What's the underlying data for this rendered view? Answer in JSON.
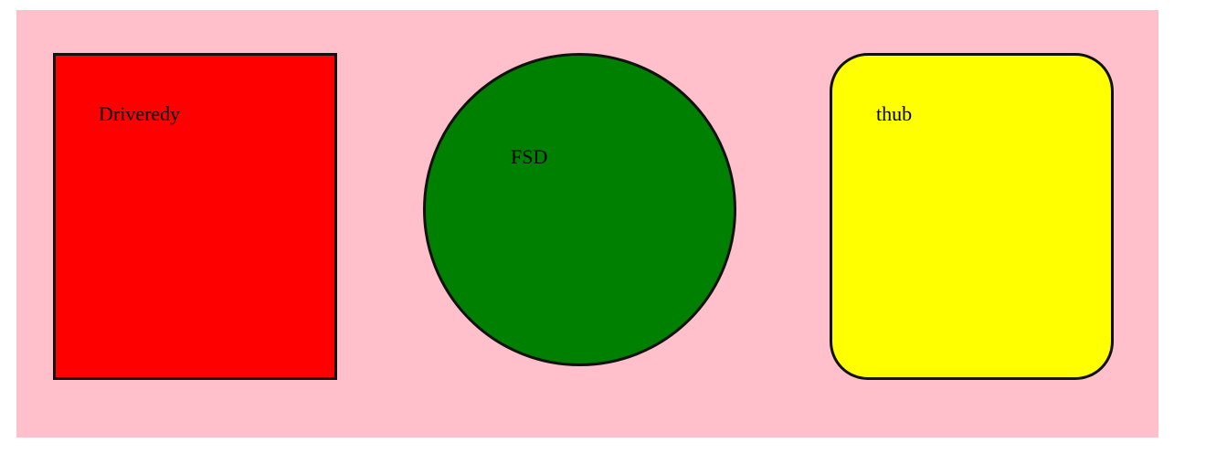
{
  "canvas": {
    "background": "#ffc0cb"
  },
  "shapes": [
    {
      "kind": "rectangle",
      "label": "Driveredy",
      "fill": "#ff0000",
      "border": "#111111"
    },
    {
      "kind": "circle",
      "label": "FSD",
      "fill": "#008000",
      "border": "#111111"
    },
    {
      "kind": "rounded-rectangle",
      "label": "thub",
      "fill": "#ffff00",
      "border": "#111111"
    }
  ]
}
